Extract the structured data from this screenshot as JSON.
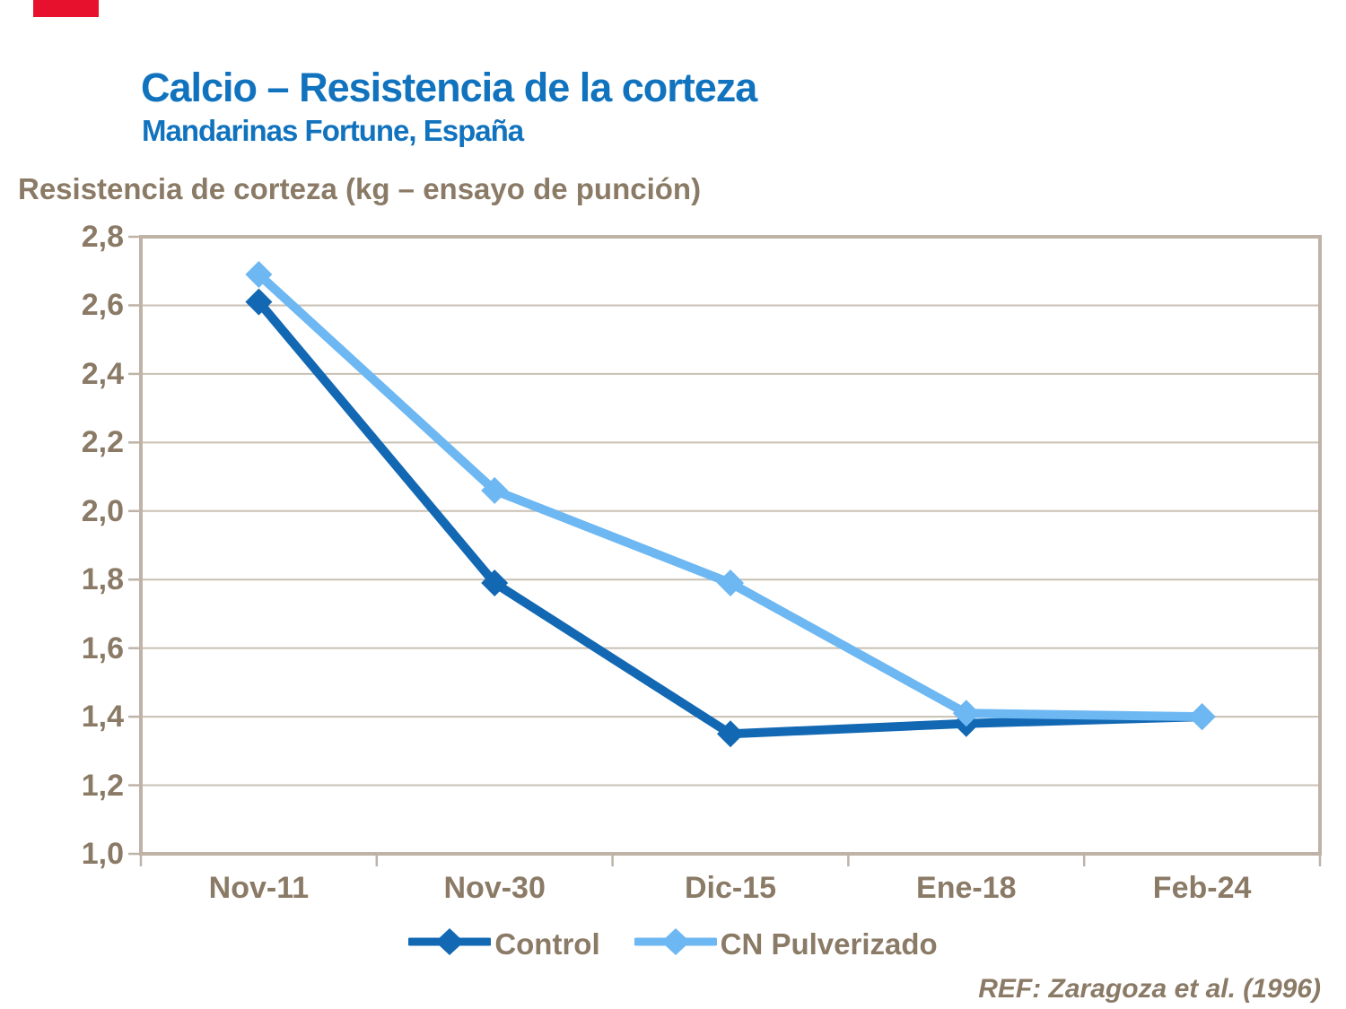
{
  "page": {
    "accent_bar_color": "#E8112D",
    "title_color": "#1173BE",
    "axis_text_color": "#8A7A66"
  },
  "header": {
    "title": "Calcio – Resistencia de la corteza",
    "subtitle": "Mandarinas Fortune, España"
  },
  "chart_data": {
    "type": "line",
    "y_axis_title": "Resistencia de corteza (kg – ensayo de punción)",
    "categories": [
      "Nov-11",
      "Nov-30",
      "Dic-15",
      "Ene-18",
      "Feb-24"
    ],
    "series": [
      {
        "name": "Control",
        "color": "#1268B3",
        "values": [
          2.61,
          1.79,
          1.35,
          1.38,
          1.4
        ]
      },
      {
        "name": "CN Pulverizado",
        "color": "#6DB7F2",
        "values": [
          2.69,
          2.06,
          1.79,
          1.41,
          1.4
        ]
      }
    ],
    "ylim": [
      1.0,
      2.8
    ],
    "ytick_step": 0.2,
    "ytick_labels": [
      "1,0",
      "1,2",
      "1,4",
      "1,6",
      "1,8",
      "2,0",
      "2,2",
      "2,4",
      "2,6",
      "2,8"
    ],
    "grid": true,
    "marker": "diamond",
    "legend_position": "bottom",
    "gridline_color": "#C9C0B3",
    "border_color": "#BFB3A8"
  },
  "footer": {
    "ref": "REF: Zaragoza et al. (1996)"
  }
}
